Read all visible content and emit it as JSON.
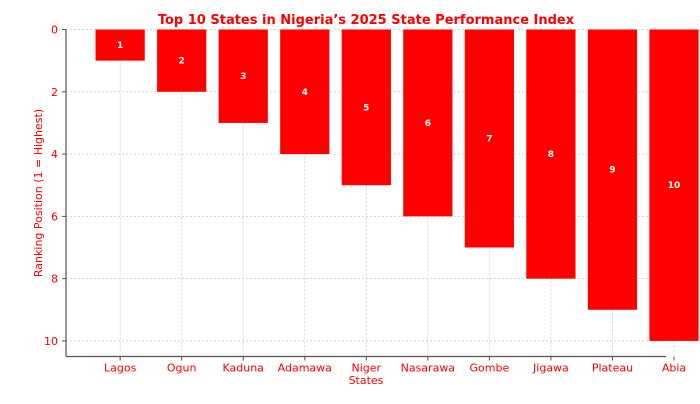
{
  "chart_data": {
    "type": "bar",
    "title": "Top 10 States in Nigeria’s 2025 State Performance Index",
    "xlabel": "States",
    "ylabel": "Ranking Position (1 = Highest)",
    "categories": [
      "Lagos",
      "Ogun",
      "Kaduna",
      "Adamawa",
      "Niger",
      "Nasarawa",
      "Gombe",
      "Jigawa",
      "Plateau",
      "Abia"
    ],
    "values": [
      1,
      2,
      3,
      4,
      5,
      6,
      7,
      8,
      9,
      10
    ],
    "data_labels": [
      "1",
      "2",
      "3",
      "4",
      "5",
      "6",
      "7",
      "8",
      "9",
      "10"
    ],
    "ylim": [
      10.5,
      0
    ],
    "y_inverted": true,
    "yticks": [
      "0",
      "2",
      "4",
      "6",
      "8",
      "10"
    ],
    "grid": true,
    "colors": {
      "bar": "#ff0000",
      "text": "#ff0000",
      "data_label": "#ffffff",
      "grid": "#cccccc",
      "axis": "#555555"
    }
  }
}
